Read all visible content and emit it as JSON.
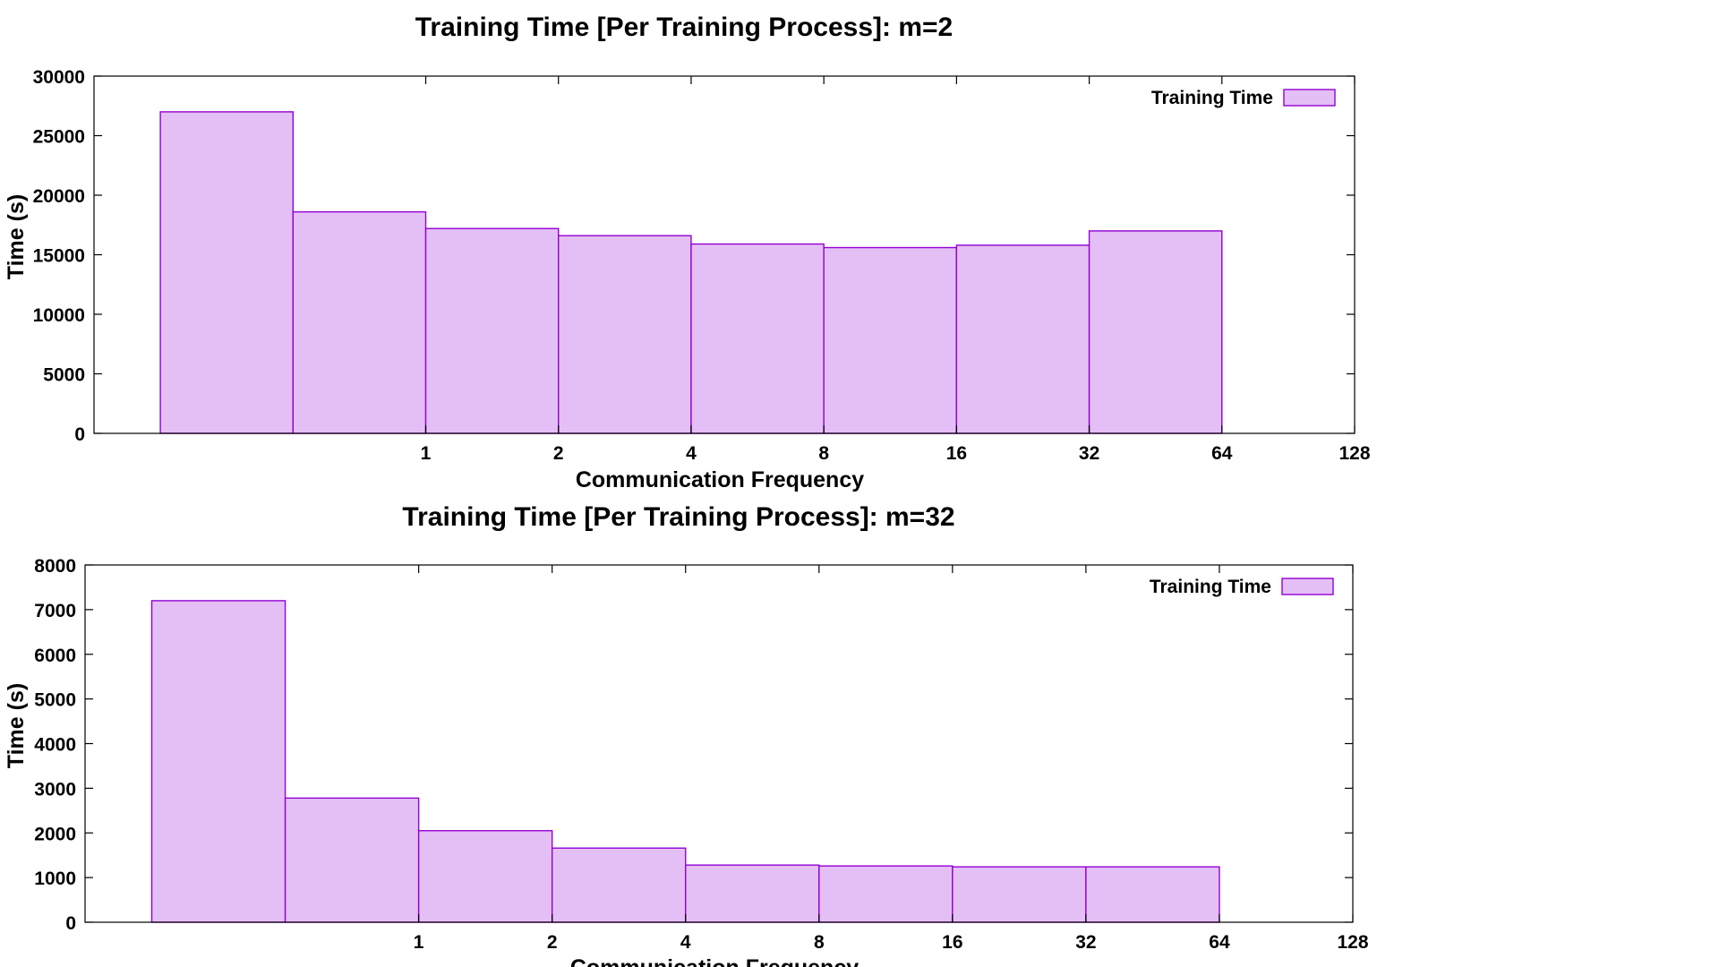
{
  "colors": {
    "bar_fill": "#e4bff5",
    "bar_stroke": "#9400d3"
  },
  "chart_data": [
    {
      "type": "bar",
      "title": "Training Time [Per Training Process]: m=2",
      "xlabel": "Communication Frequency",
      "ylabel": "Time (s)",
      "ylim": [
        0,
        30000
      ],
      "yticks": [
        0,
        5000,
        10000,
        15000,
        20000,
        25000,
        30000
      ],
      "xticks": [
        "1",
        "2",
        "4",
        "8",
        "16",
        "32",
        "64",
        "128"
      ],
      "legend": {
        "label": "Training Time",
        "position": "top-right"
      },
      "grid": false,
      "values": [
        27000,
        18600,
        17200,
        16600,
        15900,
        15600,
        15800,
        17000
      ]
    },
    {
      "type": "bar",
      "title": "Training Time [Per Training Process]: m=32",
      "xlabel": "Communication Frequency",
      "ylabel": "Time (s)",
      "ylim": [
        0,
        8000
      ],
      "yticks": [
        0,
        1000,
        2000,
        3000,
        4000,
        5000,
        6000,
        7000,
        8000
      ],
      "xticks": [
        "1",
        "2",
        "4",
        "8",
        "16",
        "32",
        "64",
        "128"
      ],
      "legend": {
        "label": "Training Time",
        "position": "top-right"
      },
      "grid": false,
      "values": [
        7200,
        2780,
        2050,
        1660,
        1280,
        1260,
        1240,
        1240
      ]
    }
  ]
}
